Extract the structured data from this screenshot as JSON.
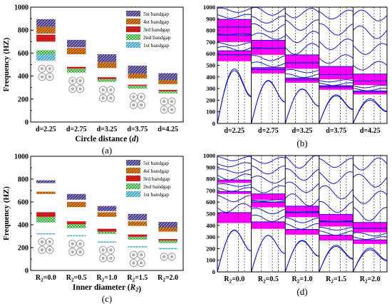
{
  "colors": {
    "band1": "#4aa8c8",
    "band2": "#2e9e2e",
    "band3": "#d42020",
    "band4": "#e0801a",
    "band5": "#4a3a80",
    "magenta": "#ff00ff",
    "curve": "#1a1acc"
  },
  "chart_data": [
    {
      "id": "a",
      "type": "bar",
      "panel_label": "(a)",
      "xlabel_main": "Circle distance (",
      "xlabel_var": "d",
      "xlabel_end": ")",
      "ylabel": "Frequency (HZ)",
      "ylim": [
        0,
        1000
      ],
      "yticks": [
        "0",
        "200",
        "400",
        "600",
        "800",
        "1000"
      ],
      "categories": [
        "d=2.25",
        "d=2.75",
        "d=3.25",
        "d=3.75",
        "d=4.25"
      ],
      "legend": [
        "5st bandgap",
        "4st bandgap",
        "3rd bandgap",
        "2nd bandgap",
        "1st bandgap"
      ],
      "series": [
        {
          "name": "1st bandgap",
          "ranges": [
            [
              535,
              590
            ],
            null,
            null,
            null,
            null
          ]
        },
        {
          "name": "2nd bandgap",
          "ranges": [
            [
              590,
              625
            ],
            [
              430,
              465
            ],
            [
              350,
              375
            ],
            [
              290,
              315
            ],
            [
              250,
              270
            ]
          ]
        },
        {
          "name": "3rd bandgap",
          "ranges": [
            [
              700,
              760
            ],
            [
              465,
              480
            ],
            [
              375,
              390
            ],
            [
              315,
              325
            ],
            [
              270,
              280
            ]
          ]
        },
        {
          "name": "4st bandgap",
          "ranges": [
            [
              770,
              830
            ],
            [
              590,
              645
            ],
            [
              470,
              520
            ],
            [
              380,
              420
            ],
            [
              330,
              365
            ]
          ]
        },
        {
          "name": "5st bandgap",
          "ranges": [
            [
              830,
              895
            ],
            [
              650,
              715
            ],
            [
              520,
              590
            ],
            [
              420,
              490
            ],
            [
              365,
              425
            ]
          ]
        }
      ]
    },
    {
      "id": "c",
      "type": "bar",
      "panel_label": "(c)",
      "xlabel_main": "Inner diameter (",
      "xlabel_var": "R",
      "xlabel_sub": "2",
      "xlabel_end": ")",
      "ylabel": "Frequency (HZ)",
      "ylim": [
        0,
        1000
      ],
      "yticks": [
        "0",
        "200",
        "400",
        "600",
        "800",
        "1000"
      ],
      "categories": [
        {
          "pre": "R",
          "sub": "2",
          "post": "=0.0"
        },
        {
          "pre": "R",
          "sub": "2",
          "post": "=0.5"
        },
        {
          "pre": "R",
          "sub": "2",
          "post": "=1.0"
        },
        {
          "pre": "R",
          "sub": "2",
          "post": "=1.5"
        },
        {
          "pre": "R",
          "sub": "2",
          "post": "=2.0"
        }
      ],
      "legend": [
        "5st bandgap",
        "4st bandgap",
        "3rd bandgap",
        "2nd bandgap",
        "1st bandgap"
      ],
      "series": [
        {
          "name": "1st bandgap",
          "ranges": [
            [
              322,
              326
            ],
            [
              305,
              309
            ],
            [
              250,
              254
            ],
            [
              208,
              212
            ],
            [
              192,
              196
            ]
          ]
        },
        {
          "name": "2nd bandgap",
          "ranges": [
            [
              420,
              470
            ],
            [
              370,
              405
            ],
            [
              320,
              340
            ],
            [
              270,
              295
            ],
            [
              240,
              262
            ]
          ]
        },
        {
          "name": "3rd bandgap",
          "ranges": [
            [
              470,
              510
            ],
            [
              405,
              430
            ],
            [
              340,
              365
            ],
            [
              295,
              315
            ],
            [
              262,
              275
            ]
          ]
        },
        {
          "name": "4st bandgap",
          "ranges": [
            [
              670,
              690
            ],
            [
              555,
              600
            ],
            [
              470,
              510
            ],
            [
              390,
              430
            ],
            [
              340,
              375
            ]
          ]
        },
        {
          "name": "5st bandgap",
          "ranges": [
            [
              765,
              790
            ],
            [
              620,
              670
            ],
            [
              520,
              565
            ],
            [
              440,
              495
            ],
            [
              375,
              425
            ]
          ]
        }
      ]
    },
    {
      "id": "b",
      "type": "line",
      "panel_label": "(b)",
      "ylim": [
        0,
        1000
      ],
      "yticks": [
        "0",
        "100",
        "200",
        "300",
        "400",
        "500",
        "600",
        "700",
        "800",
        "900",
        "1000"
      ],
      "categories": [
        "d=2.25",
        "d=2.75",
        "d=3.25",
        "d=3.75",
        "d=4.25"
      ],
      "bands": [
        [
          [
            535,
            590
          ],
          [
            590,
            625
          ],
          [
            700,
            760
          ],
          [
            770,
            830
          ],
          [
            830,
            895
          ]
        ],
        [
          [
            430,
            465
          ],
          [
            465,
            480
          ],
          [
            590,
            645
          ],
          [
            650,
            715
          ]
        ],
        [
          [
            350,
            375
          ],
          [
            375,
            390
          ],
          [
            470,
            520
          ],
          [
            520,
            590
          ]
        ],
        [
          [
            290,
            315
          ],
          [
            315,
            325
          ],
          [
            380,
            420
          ],
          [
            420,
            490
          ]
        ],
        [
          [
            250,
            270
          ],
          [
            270,
            280
          ],
          [
            330,
            365
          ],
          [
            365,
            425
          ]
        ]
      ]
    },
    {
      "id": "d",
      "type": "line",
      "panel_label": "(d)",
      "ylim": [
        0,
        1000
      ],
      "yticks": [
        "0",
        "100",
        "200",
        "300",
        "400",
        "500",
        "600",
        "700",
        "800",
        "900",
        "1000"
      ],
      "categories": [
        {
          "pre": "R",
          "sub": "2",
          "post": "=0.0"
        },
        {
          "pre": "R",
          "sub": "2",
          "post": "=0.5"
        },
        {
          "pre": "R",
          "sub": "2",
          "post": "=1.0"
        },
        {
          "pre": "R",
          "sub": "2",
          "post": "=1.5"
        },
        {
          "pre": "R",
          "sub": "2",
          "post": "=2.0"
        }
      ],
      "bands": [
        [
          [
            420,
            510
          ],
          [
            670,
            690
          ],
          [
            765,
            790
          ]
        ],
        [
          [
            370,
            430
          ],
          [
            555,
            600
          ],
          [
            620,
            670
          ]
        ],
        [
          [
            320,
            365
          ],
          [
            470,
            510
          ],
          [
            520,
            565
          ]
        ],
        [
          [
            270,
            315
          ],
          [
            390,
            430
          ],
          [
            440,
            495
          ]
        ],
        [
          [
            240,
            275
          ],
          [
            340,
            375
          ],
          [
            375,
            425
          ]
        ]
      ]
    }
  ]
}
